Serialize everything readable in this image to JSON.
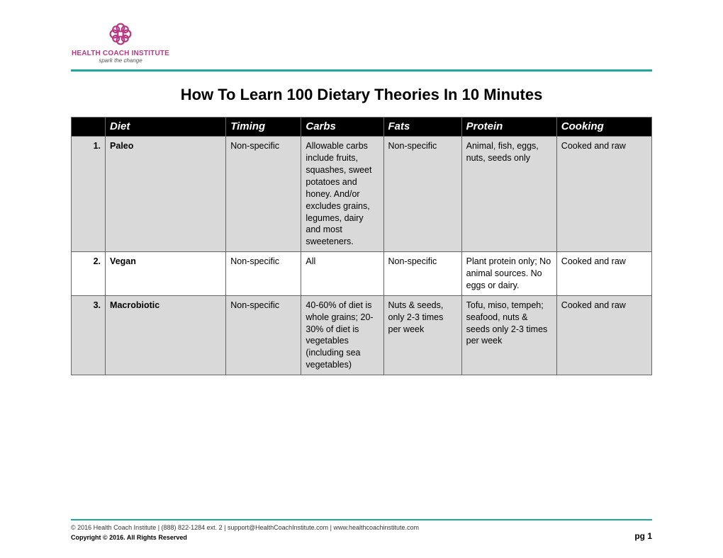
{
  "logo": {
    "brand_top": "HEALTH COACH",
    "brand_bottom": "INSTITUTE",
    "tagline": "spark the change",
    "icon_color": "#b73984",
    "brand_color": "#b73984"
  },
  "divider_color": "#1fa79e",
  "title": "How To Learn 100 Dietary Theories In 10 Minutes",
  "table": {
    "header_bg": "#000000",
    "header_fg": "#ffffff",
    "shade_bg": "#d9d9d9",
    "columns": [
      "",
      "Diet",
      "Timing",
      "Carbs",
      "Fats",
      "Protein",
      "Cooking"
    ],
    "rows": [
      {
        "num": "1.",
        "diet": "Paleo",
        "timing": "Non-specific",
        "carbs": "Allowable carbs include fruits, squashes, sweet potatoes and honey. And/or excludes grains, legumes, dairy and most sweeteners.",
        "fats": "Non-specific",
        "protein": "Animal, fish, eggs, nuts, seeds only",
        "cooking": "Cooked and raw",
        "shaded": true
      },
      {
        "num": "2.",
        "diet": "Vegan",
        "timing": "Non-specific",
        "carbs": "All",
        "fats": "Non-specific",
        "protein": "Plant protein only; No animal sources. No eggs or dairy.",
        "cooking": "Cooked and raw",
        "shaded": false
      },
      {
        "num": "3.",
        "diet": "Macrobiotic",
        "timing": "Non-specific",
        "carbs": "40-60% of diet is whole grains; 20-30% of diet is vegetables (including sea vegetables)",
        "fats": "Nuts & seeds, only 2-3 times per week",
        "protein": "Tofu, miso, tempeh; seafood, nuts & seeds only 2-3 times per week",
        "cooking": "Cooked and raw",
        "shaded": true
      }
    ]
  },
  "footer": {
    "line1": "© 2016 Health Coach Institute | (888) 822-1284 ext. 2 | support@HealthCoachInstitute.com | www.healthcoachinstitute.com",
    "line2": "Copyright © 2016. All Rights Reserved",
    "page": "pg 1"
  }
}
